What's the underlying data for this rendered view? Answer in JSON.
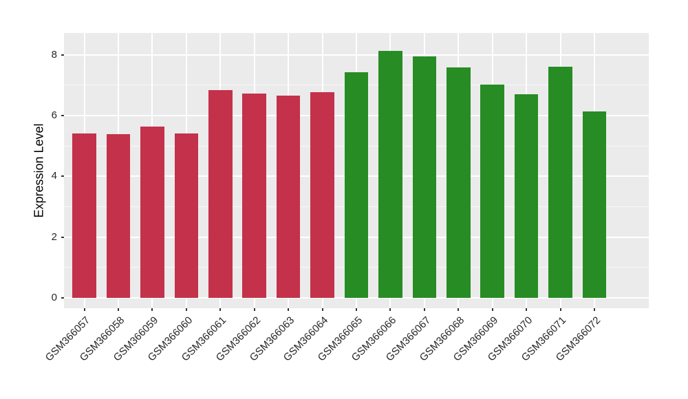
{
  "chart_data": {
    "type": "bar",
    "title": "",
    "xlabel": "",
    "ylabel": "Expression Level",
    "ylim": [
      -0.34,
      8.72
    ],
    "yticks_major": [
      0,
      2,
      4,
      6,
      8
    ],
    "ytick_labels": [
      "0",
      "2",
      "4",
      "6",
      "8"
    ],
    "yticks_minor": [
      1,
      3,
      5,
      7
    ],
    "grid": "on",
    "legend": "none",
    "bar_width_fraction": 0.7,
    "categories": [
      "GSM366057",
      "GSM366058",
      "GSM366059",
      "GSM366060",
      "GSM366061",
      "GSM366062",
      "GSM366063",
      "GSM366064",
      "GSM366065",
      "GSM366066",
      "GSM366067",
      "GSM366068",
      "GSM366069",
      "GSM366070",
      "GSM366071",
      "GSM366072"
    ],
    "values": [
      5.41,
      5.38,
      5.64,
      5.41,
      6.85,
      6.73,
      6.66,
      6.78,
      7.43,
      8.12,
      7.96,
      7.59,
      7.03,
      6.7,
      7.6,
      6.13
    ],
    "colors": [
      "#C3314B",
      "#C3314B",
      "#C3314B",
      "#C3314B",
      "#C3314B",
      "#C3314B",
      "#C3314B",
      "#C3314B",
      "#278C24",
      "#278C24",
      "#278C24",
      "#278C24",
      "#278C24",
      "#278C24",
      "#278C24",
      "#278C24"
    ]
  },
  "style": {
    "panel_background": "#EBEBEB",
    "gridline_color": "#FFFFFF",
    "tick_color": "#333333",
    "axis_text_color": "#262626",
    "axis_title_color": "#000000",
    "figure_background": "#FFFFFF"
  }
}
